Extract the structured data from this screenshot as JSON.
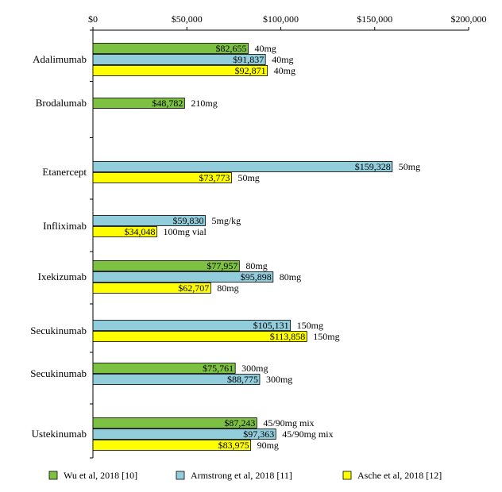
{
  "chart_data": {
    "type": "bar",
    "orientation": "horizontal",
    "xlim": [
      0,
      200000
    ],
    "x_ticks": [
      {
        "value": 0,
        "label": "$0"
      },
      {
        "value": 50000,
        "label": "$50,000"
      },
      {
        "value": 100000,
        "label": "$100,000"
      },
      {
        "value": 150000,
        "label": "$150,000"
      },
      {
        "value": 200000,
        "label": "$200,000"
      }
    ],
    "x_axis_position": "top",
    "grid": false,
    "legend_position": "bottom",
    "series": [
      {
        "name": "Wu et al, 2018 [10]",
        "color": "#7dc142"
      },
      {
        "name": "Armstrong  et al, 2018 [11]",
        "color": "#92cddc"
      },
      {
        "name": "Asche et al, 2018 [12]",
        "color": "#ffff00"
      }
    ],
    "categories": [
      {
        "label": "Adalimumab",
        "bars": [
          {
            "series": 0,
            "value": 82655,
            "label": "$82,655",
            "dose": "40mg"
          },
          {
            "series": 1,
            "value": 91837,
            "label": "$91,837",
            "dose": "40mg"
          },
          {
            "series": 2,
            "value": 92871,
            "label": "$92,871",
            "dose": "40mg"
          }
        ]
      },
      {
        "label": "Brodalumab",
        "bars": [
          {
            "series": 0,
            "value": 48782,
            "label": "$48,782",
            "dose": "210mg"
          }
        ]
      },
      {
        "label": "Etanercept",
        "bars": [
          {
            "series": 1,
            "value": 159328,
            "label": "$159,328",
            "dose": "50mg"
          },
          {
            "series": 2,
            "value": 73773,
            "label": "$73,773",
            "dose": "50mg"
          }
        ]
      },
      {
        "label": "Infliximab",
        "bars": [
          {
            "series": 1,
            "value": 59830,
            "label": "$59,830",
            "dose": "5mg/kg"
          },
          {
            "series": 2,
            "value": 34048,
            "label": "$34,048",
            "dose": "100mg vial"
          }
        ]
      },
      {
        "label": "Ixekizumab",
        "bars": [
          {
            "series": 0,
            "value": 77957,
            "label": "$77,957",
            "dose": "80mg"
          },
          {
            "series": 1,
            "value": 95898,
            "label": "$95,898",
            "dose": "80mg"
          },
          {
            "series": 2,
            "value": 62707,
            "label": "$62,707",
            "dose": "80mg"
          }
        ]
      },
      {
        "label": "Secukinumab",
        "bars": [
          {
            "series": 1,
            "value": 105131,
            "label": "$105,131",
            "dose": "150mg"
          },
          {
            "series": 2,
            "value": 113858,
            "label": "$113,858",
            "dose": "150mg"
          }
        ]
      },
      {
        "label": "Secukinumab",
        "bars": [
          {
            "series": 0,
            "value": 75761,
            "label": "$75,761",
            "dose": "300mg"
          },
          {
            "series": 1,
            "value": 88775,
            "label": "$88,775",
            "dose": "300mg"
          }
        ]
      },
      {
        "label": "Ustekinumab",
        "bars": [
          {
            "series": 0,
            "value": 87243,
            "label": "$87,243",
            "dose": "45/90mg mix"
          },
          {
            "series": 1,
            "value": 97363,
            "label": "$97,363",
            "dose": "45/90mg mix"
          },
          {
            "series": 2,
            "value": 83975,
            "label": "$83,975",
            "dose": "90mg"
          }
        ]
      }
    ]
  }
}
